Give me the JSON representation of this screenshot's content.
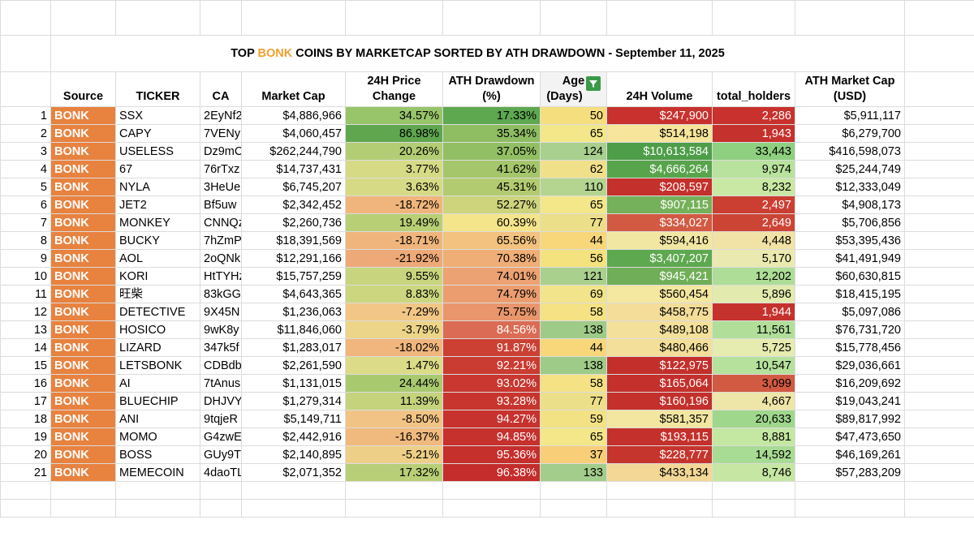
{
  "title": {
    "prefix": "TOP ",
    "accent": "BONK",
    "suffix": " COINS BY MARKETCAP SORTED BY ATH DRAWDOWN - September 11, 2025"
  },
  "colors": {
    "accent": "#f0a030",
    "source_bg": "#e8823f"
  },
  "headers": {
    "source": "Source",
    "ticker": "TICKER",
    "ca": "CA",
    "mcap": "Market Cap",
    "price_line1": "24H Price",
    "price_line2": "Change",
    "ath_line1": "ATH Drawdown",
    "ath_line2": "(%)",
    "age_line1": "Age",
    "age_line2": "(Days)",
    "vol": "24H Volume",
    "holders": "total_holders",
    "athmc_line1": "ATH Market Cap",
    "athmc_line2": "(USD)"
  },
  "age_filter_icon": "filter-icon",
  "rows": [
    {
      "n": "1",
      "src": "BONK",
      "ticker": "SSX",
      "ca": "2EyNf2",
      "mcap": "$4,886,966",
      "chg": "34.57%",
      "ath": "17.33%",
      "age": "50",
      "vol": "$247,900",
      "holders": "2,286",
      "athmc": "$5,911,117",
      "c_chg": "#98c46a",
      "c_ath": "#5ea84f",
      "c_age": "#f5de7e",
      "c_vol": "#c8312d",
      "c_hold": "#c8312d",
      "t_vol": "#fff",
      "t_hold": "#fff"
    },
    {
      "n": "2",
      "src": "BONK",
      "ticker": "CAPY",
      "ca": "7VENy",
      "mcap": "$4,060,457",
      "chg": "86.98%",
      "ath": "35.34%",
      "age": "65",
      "vol": "$514,198",
      "holders": "1,943",
      "athmc": "$6,279,700",
      "c_chg": "#5fa64f",
      "c_ath": "#8ebd62",
      "c_age": "#f3e78a",
      "c_vol": "#f6e59a",
      "c_hold": "#c5312c",
      "t_vol": "#000",
      "t_hold": "#fff"
    },
    {
      "n": "3",
      "src": "BONK",
      "ticker": "USELESS",
      "ca": "Dz9mC",
      "mcap": "$262,244,790",
      "chg": "20.26%",
      "ath": "37.05%",
      "age": "124",
      "vol": "$10,613,584",
      "holders": "33,443",
      "athmc": "$416,598,073",
      "c_chg": "#b3cd74",
      "c_ath": "#92bf64",
      "c_age": "#a9d08e",
      "c_vol": "#4e9d48",
      "c_hold": "#8ed07f",
      "t_vol": "#fff",
      "t_hold": "#000"
    },
    {
      "n": "4",
      "src": "BONK",
      "ticker": "67",
      "ca": "76rTxz",
      "mcap": "$14,737,431",
      "chg": "3.77%",
      "ath": "41.62%",
      "age": "62",
      "vol": "$4,666,264",
      "holders": "9,974",
      "athmc": "$25,244,749",
      "c_chg": "#d6da85",
      "c_ath": "#a5c66a",
      "c_age": "#f1e08a",
      "c_vol": "#58a44c",
      "c_hold": "#b8e29d",
      "t_vol": "#fff",
      "t_hold": "#000"
    },
    {
      "n": "5",
      "src": "BONK",
      "ticker": "NYLA",
      "ca": "3HeUe",
      "mcap": "$6,745,207",
      "chg": "3.63%",
      "ath": "45.31%",
      "age": "110",
      "vol": "$208,597",
      "holders": "8,232",
      "athmc": "$12,333,049",
      "c_chg": "#d6da85",
      "c_ath": "#b3cb70",
      "c_age": "#b3d590",
      "c_vol": "#c4302b",
      "c_hold": "#c9e8a4",
      "t_vol": "#fff",
      "t_hold": "#000"
    },
    {
      "n": "6",
      "src": "BONK",
      "ticker": "JET2",
      "ca": "Bf5uw",
      "mcap": "$2,342,452",
      "chg": "-18.72%",
      "ath": "52.27%",
      "age": "65",
      "vol": "$907,115",
      "holders": "2,497",
      "athmc": "$4,908,173",
      "c_chg": "#f0b57c",
      "c_ath": "#cdd47c",
      "c_age": "#f3e78a",
      "c_vol": "#75b05a",
      "c_hold": "#cb3e32",
      "t_vol": "#fff",
      "t_hold": "#fff"
    },
    {
      "n": "7",
      "src": "BONK",
      "ticker": "MONKEY",
      "ca": "CNNQz",
      "mcap": "$2,260,736",
      "chg": "19.49%",
      "ath": "60.39%",
      "age": "77",
      "vol": "$334,027",
      "holders": "2,649",
      "athmc": "$5,706,856",
      "c_chg": "#b8cf76",
      "c_ath": "#f5e58a",
      "c_age": "#ecdf8a",
      "c_vol": "#d25a43",
      "c_hold": "#cc4434",
      "t_vol": "#fff",
      "t_hold": "#fff"
    },
    {
      "n": "8",
      "src": "BONK",
      "ticker": "BUCKY",
      "ca": "7hZmP",
      "mcap": "$18,391,569",
      "chg": "-18.71%",
      "ath": "65.56%",
      "age": "44",
      "vol": "$594,416",
      "holders": "4,448",
      "athmc": "$53,395,436",
      "c_chg": "#f0b57c",
      "c_ath": "#f2c27e",
      "c_age": "#f7d77a",
      "c_vol": "#f2e7a2",
      "c_hold": "#f1e2a5",
      "t_vol": "#000",
      "t_hold": "#000"
    },
    {
      "n": "9",
      "src": "BONK",
      "ticker": "AOL",
      "ca": "2oQNk",
      "mcap": "$12,291,166",
      "chg": "-21.92%",
      "ath": "70.38%",
      "age": "56",
      "vol": "$3,407,207",
      "holders": "5,170",
      "athmc": "$41,491,949",
      "c_chg": "#eea978",
      "c_ath": "#efae76",
      "c_age": "#f4e27e",
      "c_vol": "#5ea84f",
      "c_hold": "#eaeab0",
      "t_vol": "#fff",
      "t_hold": "#000"
    },
    {
      "n": "10",
      "src": "BONK",
      "ticker": "KORI",
      "ca": "HtTYHz",
      "mcap": "$15,757,259",
      "chg": "9.55%",
      "ath": "74.01%",
      "age": "121",
      "vol": "$945,421",
      "holders": "12,202",
      "athmc": "$60,630,815",
      "c_chg": "#c9d57e",
      "c_ath": "#eca272",
      "c_age": "#aad08e",
      "c_vol": "#70ae58",
      "c_hold": "#aedd97",
      "t_vol": "#fff",
      "t_hold": "#000"
    },
    {
      "n": "11",
      "src": "BONK",
      "ticker": "旺柴",
      "ca": "83kGG",
      "mcap": "$4,643,365",
      "chg": "8.83%",
      "ath": "74.79%",
      "age": "69",
      "vol": "$560,454",
      "holders": "5,896",
      "athmc": "$18,415,195",
      "c_chg": "#cbd67f",
      "c_ath": "#eb9d70",
      "c_age": "#f2e48a",
      "c_vol": "#f4e7a0",
      "c_hold": "#e2eaad",
      "t_vol": "#000",
      "t_hold": "#000"
    },
    {
      "n": "12",
      "src": "BONK",
      "ticker": "DETECTIVE",
      "ca": "9X45N",
      "mcap": "$1,236,063",
      "chg": "-7.29%",
      "ath": "75.75%",
      "age": "58",
      "vol": "$458,775",
      "holders": "1,944",
      "athmc": "$5,097,086",
      "c_chg": "#f1c686",
      "c_ath": "#e9966d",
      "c_age": "#f4e284",
      "c_vol": "#f3dd99",
      "c_hold": "#c5312c",
      "t_vol": "#000",
      "t_hold": "#fff"
    },
    {
      "n": "13",
      "src": "BONK",
      "ticker": "HOSICO",
      "ca": "9wK8y",
      "mcap": "$11,846,060",
      "chg": "-3.79%",
      "ath": "84.56%",
      "age": "138",
      "vol": "$489,108",
      "holders": "11,561",
      "athmc": "$76,731,720",
      "c_chg": "#ecd589",
      "c_ath": "#db6b54",
      "c_age": "#9fcb88",
      "c_vol": "#f3e09a",
      "c_hold": "#b1df99",
      "t_vol": "#000",
      "t_hold": "#000"
    },
    {
      "n": "14",
      "src": "BONK",
      "ticker": "LIZARD",
      "ca": "347k5f",
      "mcap": "$1,283,017",
      "chg": "-18.02%",
      "ath": "91.87%",
      "age": "44",
      "vol": "$480,466",
      "holders": "5,725",
      "athmc": "$15,778,456",
      "c_chg": "#f0b67d",
      "c_ath": "#cc4033",
      "c_age": "#f7d77a",
      "c_vol": "#f3df99",
      "c_hold": "#e6ebaf",
      "t_vol": "#000",
      "t_hold": "#000"
    },
    {
      "n": "15",
      "src": "BONK",
      "ticker": "LETSBONK",
      "ca": "CDBdb",
      "mcap": "$2,261,590",
      "chg": "1.47%",
      "ath": "92.21%",
      "age": "138",
      "vol": "$122,975",
      "holders": "10,547",
      "athmc": "$29,036,661",
      "c_chg": "#dcdb87",
      "c_ath": "#ca3b31",
      "c_age": "#9fcb88",
      "c_vol": "#c32f2b",
      "c_hold": "#b6e19c",
      "t_vol": "#fff",
      "t_hold": "#000"
    },
    {
      "n": "16",
      "src": "BONK",
      "ticker": "AI",
      "ca": "7tAnus",
      "mcap": "$1,131,015",
      "chg": "24.44%",
      "ath": "93.02%",
      "age": "58",
      "vol": "$165,064",
      "holders": "3,099",
      "athmc": "$16,209,692",
      "c_chg": "#a9c96f",
      "c_ath": "#c93730",
      "c_age": "#f4e284",
      "c_vol": "#c4302b",
      "c_hold": "#d25a43",
      "t_vol": "#fff",
      "t_hold": "#000"
    },
    {
      "n": "17",
      "src": "BONK",
      "ticker": "BLUECHIP",
      "ca": "DHJVY",
      "mcap": "$1,279,314",
      "chg": "11.39%",
      "ath": "93.28%",
      "age": "77",
      "vol": "$160,196",
      "holders": "4,667",
      "athmc": "$19,043,241",
      "c_chg": "#c4d37c",
      "c_ath": "#c8352f",
      "c_age": "#ecdf8a",
      "c_vol": "#c4302b",
      "c_hold": "#eee5a8",
      "t_vol": "#fff",
      "t_hold": "#000"
    },
    {
      "n": "18",
      "src": "BONK",
      "ticker": "ANI",
      "ca": "9tqjeR",
      "mcap": "$5,149,711",
      "chg": "-8.50%",
      "ath": "94.27%",
      "age": "59",
      "vol": "$581,357",
      "holders": "20,633",
      "athmc": "$89,817,992",
      "c_chg": "#f1c385",
      "c_ath": "#c7322e",
      "c_age": "#f3e284",
      "c_vol": "#f2e6a1",
      "c_hold": "#9fd78c",
      "t_vol": "#000",
      "t_hold": "#000"
    },
    {
      "n": "19",
      "src": "BONK",
      "ticker": "MOMO",
      "ca": "G4zwE",
      "mcap": "$2,442,916",
      "chg": "-16.37%",
      "ath": "94.85%",
      "age": "65",
      "vol": "$193,115",
      "holders": "8,881",
      "athmc": "$47,473,650",
      "c_chg": "#f0b97e",
      "c_ath": "#c6302d",
      "c_age": "#f3e78a",
      "c_vol": "#c4302b",
      "c_hold": "#c4e7a2",
      "t_vol": "#fff",
      "t_hold": "#000"
    },
    {
      "n": "20",
      "src": "BONK",
      "ticker": "BOSS",
      "ca": "GUy9T",
      "mcap": "$2,140,895",
      "chg": "-5.21%",
      "ath": "95.36%",
      "age": "37",
      "vol": "$228,777",
      "holders": "14,592",
      "athmc": "$46,169,261",
      "c_chg": "#eecf88",
      "c_ath": "#c52f2c",
      "c_age": "#f8cf78",
      "c_vol": "#c6352d",
      "c_hold": "#a8db93",
      "t_vol": "#fff",
      "t_hold": "#000"
    },
    {
      "n": "21",
      "src": "BONK",
      "ticker": "MEMECOIN",
      "ca": "4daoTL",
      "mcap": "$2,071,352",
      "chg": "17.32%",
      "ath": "96.38%",
      "age": "133",
      "vol": "$433,134",
      "holders": "8,746",
      "athmc": "$57,283,209",
      "c_chg": "#b9cf77",
      "c_ath": "#c42d2b",
      "c_age": "#a3cd8a",
      "c_vol": "#f2d797",
      "c_hold": "#c6e7a3",
      "t_vol": "#000",
      "t_hold": "#000"
    }
  ]
}
